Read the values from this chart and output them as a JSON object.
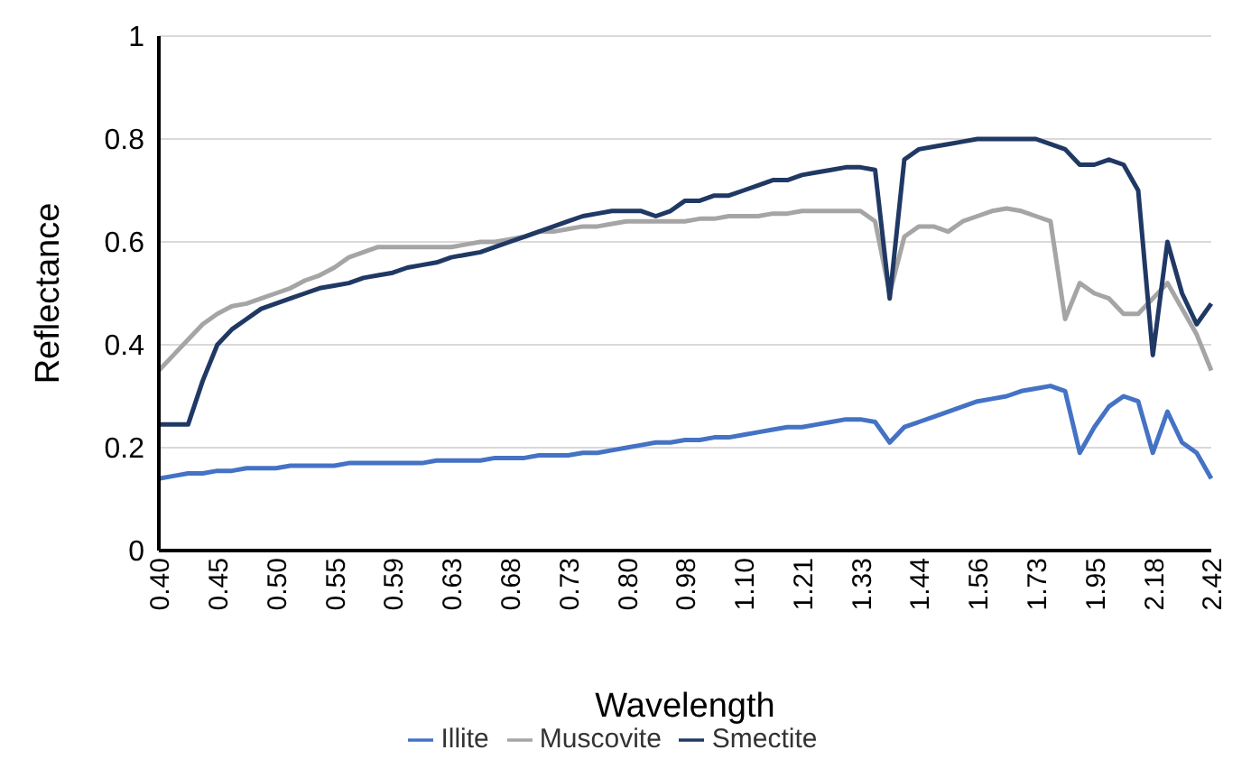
{
  "chart_data": {
    "type": "line",
    "xlabel": "Wavelength",
    "ylabel": "Reflectance",
    "categories": [
      "0.40",
      null,
      null,
      null,
      "0.45",
      null,
      null,
      null,
      "0.50",
      null,
      null,
      null,
      "0.55",
      null,
      null,
      null,
      "0.59",
      null,
      null,
      null,
      "0.63",
      null,
      null,
      null,
      "0.68",
      null,
      null,
      null,
      "0.73",
      null,
      null,
      null,
      "0.80",
      null,
      null,
      null,
      "0.98",
      null,
      null,
      null,
      "1.10",
      null,
      null,
      null,
      "1.21",
      null,
      null,
      null,
      "1.33",
      null,
      null,
      null,
      "1.44",
      null,
      null,
      null,
      "1.56",
      null,
      null,
      null,
      "1.73",
      null,
      null,
      null,
      "1.95",
      null,
      null,
      null,
      "2.18",
      null,
      null,
      null,
      "2.42"
    ],
    "series": [
      {
        "name": "Illite",
        "color": "#4472c4",
        "values": [
          0.14,
          0.145,
          0.15,
          0.15,
          0.155,
          0.155,
          0.16,
          0.16,
          0.16,
          0.165,
          0.165,
          0.165,
          0.165,
          0.17,
          0.17,
          0.17,
          0.17,
          0.17,
          0.17,
          0.175,
          0.175,
          0.175,
          0.175,
          0.18,
          0.18,
          0.18,
          0.185,
          0.185,
          0.185,
          0.19,
          0.19,
          0.195,
          0.2,
          0.205,
          0.21,
          0.21,
          0.215,
          0.215,
          0.22,
          0.22,
          0.225,
          0.23,
          0.235,
          0.24,
          0.24,
          0.245,
          0.25,
          0.255,
          0.255,
          0.25,
          0.21,
          0.24,
          0.25,
          0.26,
          0.27,
          0.28,
          0.29,
          0.295,
          0.3,
          0.31,
          0.315,
          0.32,
          0.31,
          0.19,
          0.24,
          0.28,
          0.3,
          0.29,
          0.19,
          0.27,
          0.21,
          0.19,
          0.14
        ]
      },
      {
        "name": "Muscovite",
        "color": "#a5a5a5",
        "values": [
          0.35,
          0.38,
          0.41,
          0.44,
          0.46,
          0.475,
          0.48,
          0.49,
          0.5,
          0.51,
          0.525,
          0.535,
          0.55,
          0.57,
          0.58,
          0.59,
          0.59,
          0.59,
          0.59,
          0.59,
          0.59,
          0.595,
          0.6,
          0.6,
          0.605,
          0.61,
          0.62,
          0.62,
          0.625,
          0.63,
          0.63,
          0.635,
          0.64,
          0.64,
          0.64,
          0.64,
          0.64,
          0.645,
          0.645,
          0.65,
          0.65,
          0.65,
          0.655,
          0.655,
          0.66,
          0.66,
          0.66,
          0.66,
          0.66,
          0.64,
          0.5,
          0.61,
          0.63,
          0.63,
          0.62,
          0.64,
          0.65,
          0.66,
          0.665,
          0.66,
          0.65,
          0.64,
          0.45,
          0.52,
          0.5,
          0.49,
          0.46,
          0.46,
          0.49,
          0.52,
          0.47,
          0.42,
          0.35
        ]
      },
      {
        "name": "Smectite",
        "color": "#203864",
        "values": [
          0.245,
          0.245,
          0.245,
          0.33,
          0.4,
          0.43,
          0.45,
          0.47,
          0.48,
          0.49,
          0.5,
          0.51,
          0.515,
          0.52,
          0.53,
          0.535,
          0.54,
          0.55,
          0.555,
          0.56,
          0.57,
          0.575,
          0.58,
          0.59,
          0.6,
          0.61,
          0.62,
          0.63,
          0.64,
          0.65,
          0.655,
          0.66,
          0.66,
          0.66,
          0.65,
          0.66,
          0.68,
          0.68,
          0.69,
          0.69,
          0.7,
          0.71,
          0.72,
          0.72,
          0.73,
          0.735,
          0.74,
          0.745,
          0.745,
          0.74,
          0.49,
          0.76,
          0.78,
          0.785,
          0.79,
          0.795,
          0.8,
          0.8,
          0.8,
          0.8,
          0.8,
          0.79,
          0.78,
          0.75,
          0.75,
          0.76,
          0.75,
          0.7,
          0.38,
          0.6,
          0.5,
          0.44,
          0.48
        ]
      }
    ],
    "ylim": [
      0,
      1
    ],
    "yticks": [
      0,
      {
        "value": 0.2,
        "label": "0.2"
      },
      {
        "value": 0.4,
        "label": "0.4"
      },
      {
        "value": 0.6,
        "label": "0.6"
      },
      {
        "value": 0.8,
        "label": "0.8"
      },
      1
    ],
    "grid": "y",
    "legend": "bottom",
    "marker": "none",
    "line_style": "solid"
  }
}
